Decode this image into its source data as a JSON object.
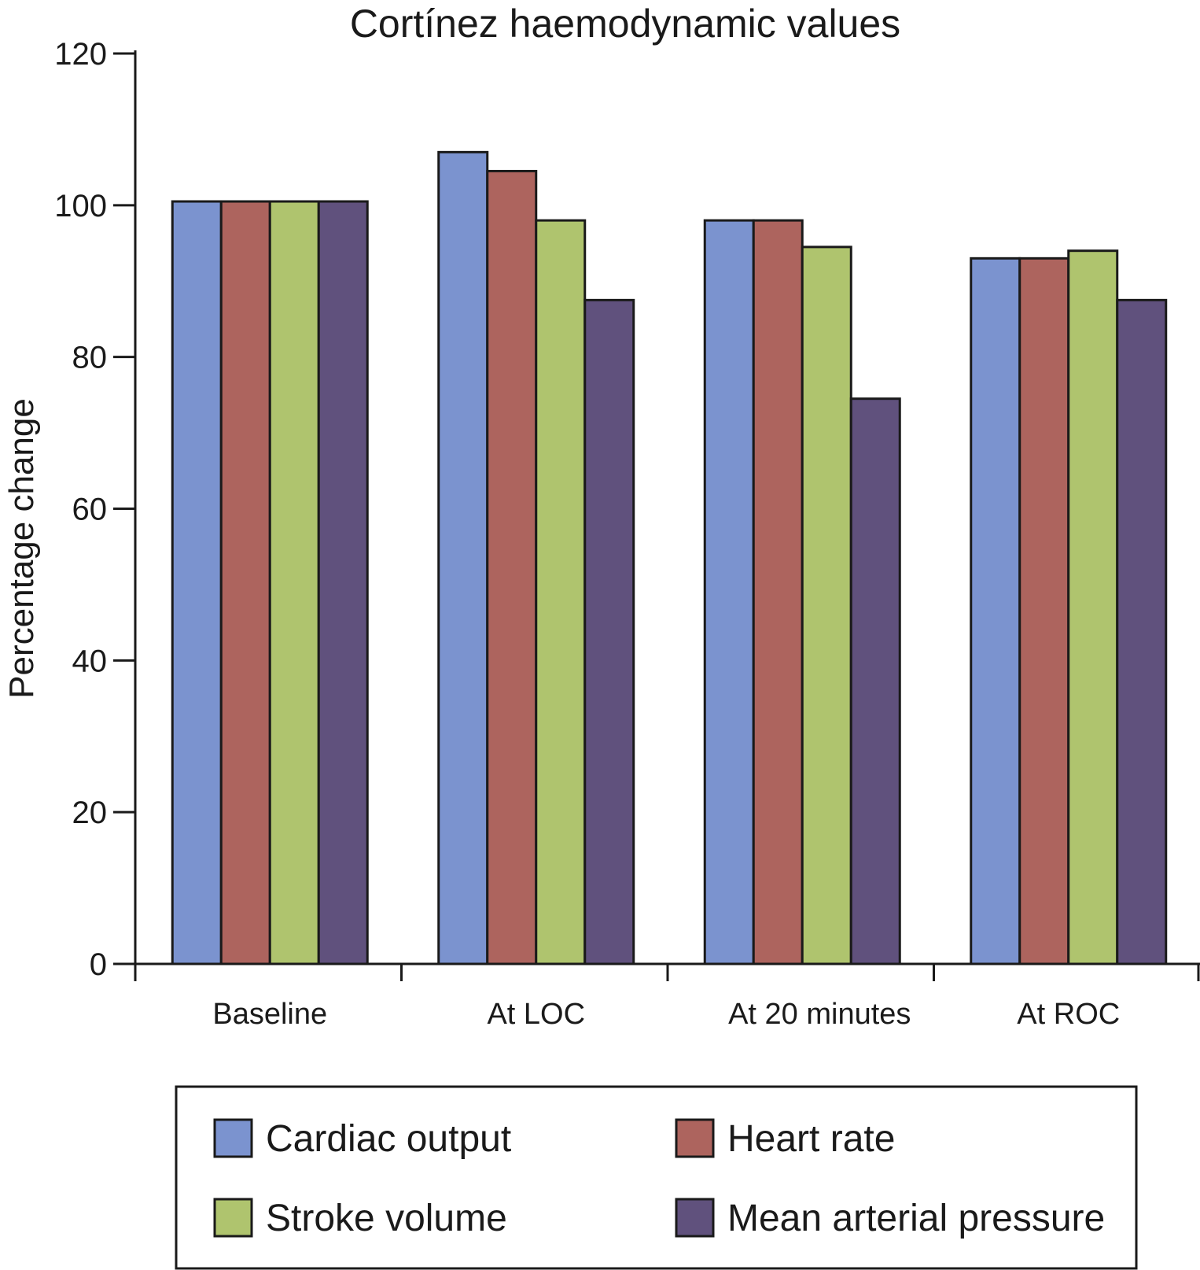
{
  "chart_data": {
    "type": "bar",
    "title": "Cortínez haemodynamic values",
    "xlabel": "",
    "ylabel": "Percentage change",
    "ylim": [
      0,
      120
    ],
    "yticks": [
      0,
      20,
      40,
      60,
      80,
      100,
      120
    ],
    "categories": [
      "Baseline",
      "At LOC",
      "At 20 minutes",
      "At ROC"
    ],
    "series": [
      {
        "name": "Cardiac output",
        "color": "#7b93cf",
        "values": [
          100.5,
          107,
          98,
          93
        ]
      },
      {
        "name": "Heart rate",
        "color": "#ad645e",
        "values": [
          100.5,
          104.5,
          98,
          93
        ]
      },
      {
        "name": "Stroke volume",
        "color": "#afc46e",
        "values": [
          100.5,
          98,
          94.5,
          94
        ]
      },
      {
        "name": "Mean arterial pressure",
        "color": "#60517d",
        "values": [
          100.5,
          87.5,
          74.5,
          87.5
        ]
      }
    ],
    "grid": false,
    "legend_position": "bottom"
  }
}
